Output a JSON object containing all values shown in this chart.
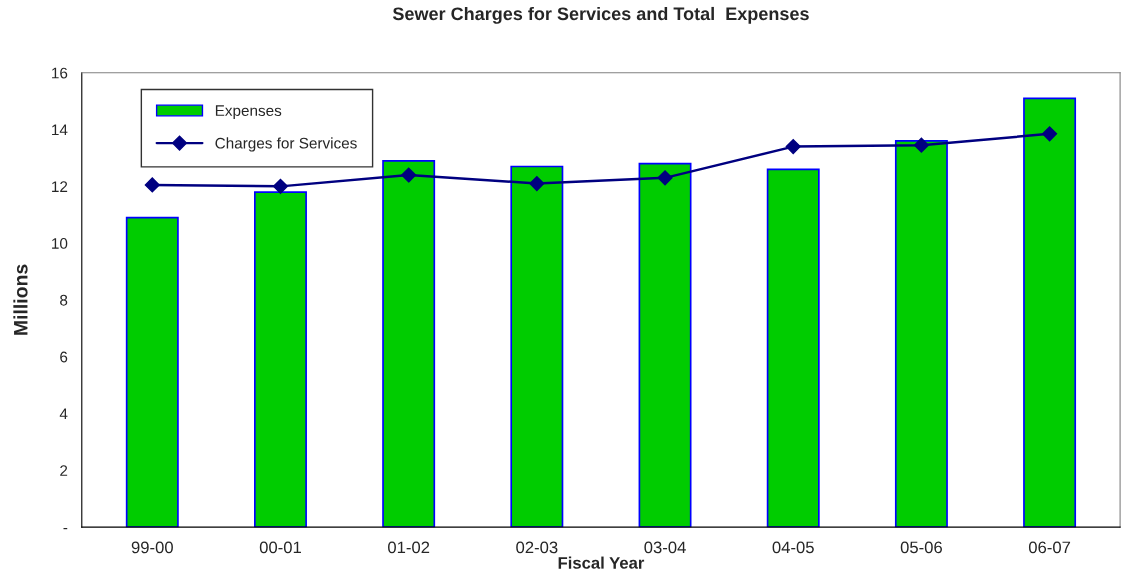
{
  "chart_data": {
    "type": "bar",
    "title": "Sewer Charges for Services and Total  Expenses",
    "xlabel": "Fiscal Year",
    "ylabel": "Millions",
    "categories": [
      "99-00",
      "00-01",
      "01-02",
      "02-03",
      "03-04",
      "04-05",
      "05-06",
      "06-07"
    ],
    "series": [
      {
        "name": "Expenses",
        "color": "#00cc00",
        "values": [
          10.9,
          11.8,
          12.9,
          12.7,
          12.8,
          12.6,
          13.6,
          15.1
        ]
      },
      {
        "name": "Charges for Services",
        "type": "line",
        "color": "#000080",
        "marker": "diamond",
        "values": [
          12.05,
          12.0,
          12.4,
          12.1,
          12.3,
          13.4,
          13.45,
          13.85
        ]
      }
    ],
    "ylim": [
      0,
      16
    ],
    "yticks": [
      {
        "value": 0,
        "label": "-"
      },
      2,
      4,
      6,
      8,
      10,
      12,
      14,
      16
    ],
    "grid": false,
    "legend": "top left"
  }
}
